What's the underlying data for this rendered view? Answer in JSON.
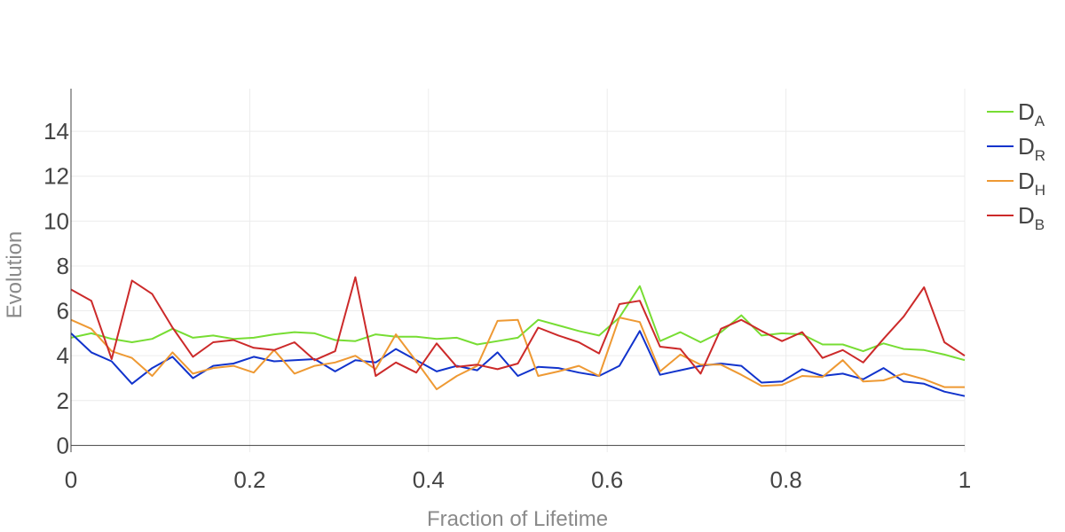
{
  "chart_data": {
    "type": "line",
    "xlabel": "Fraction of Lifetime",
    "ylabel": "Evolution",
    "xlim": [
      0,
      1
    ],
    "ylim": [
      -0.3,
      15.9
    ],
    "x_ticks": [
      0,
      0.2,
      0.4,
      0.6,
      0.8,
      1
    ],
    "x_tick_labels": [
      "0",
      "0.2",
      "0.4",
      "0.6",
      "0.8",
      "1"
    ],
    "y_ticks": [
      0,
      2,
      4,
      6,
      8,
      10,
      12,
      14
    ],
    "y_tick_labels": [
      "0",
      "2",
      "4",
      "6",
      "8",
      "10",
      "12",
      "14"
    ],
    "grid": true,
    "legend_position": "right",
    "x": [
      0,
      0.0227,
      0.0455,
      0.0682,
      0.0909,
      0.1136,
      0.1364,
      0.1591,
      0.1818,
      0.2045,
      0.2273,
      0.25,
      0.2727,
      0.2955,
      0.3182,
      0.3409,
      0.3636,
      0.3864,
      0.4091,
      0.4318,
      0.4545,
      0.4773,
      0.5,
      0.5227,
      0.5455,
      0.5682,
      0.5909,
      0.6136,
      0.6364,
      0.6591,
      0.6818,
      0.7045,
      0.7273,
      0.75,
      0.7727,
      0.7955,
      0.8182,
      0.8409,
      0.8636,
      0.8864,
      0.9091,
      0.9318,
      0.9545,
      0.9773,
      1
    ],
    "series": [
      {
        "name": "D",
        "sub": "A",
        "color": "#77dd33",
        "values": [
          4.8,
          5.0,
          4.75,
          4.6,
          4.75,
          5.2,
          4.8,
          4.9,
          4.75,
          4.8,
          4.95,
          5.05,
          5.0,
          4.7,
          4.65,
          4.95,
          4.85,
          4.85,
          4.75,
          4.8,
          4.5,
          4.65,
          4.8,
          5.6,
          5.35,
          5.1,
          4.9,
          5.7,
          7.1,
          4.65,
          5.05,
          4.6,
          5.05,
          5.8,
          4.9,
          5.0,
          4.95,
          4.5,
          4.5,
          4.2,
          4.55,
          4.3,
          4.25,
          4.05,
          3.8
        ]
      },
      {
        "name": "D",
        "sub": "R",
        "color": "#1133cc",
        "values": [
          5.0,
          4.15,
          3.75,
          2.75,
          3.45,
          3.95,
          3.0,
          3.55,
          3.65,
          3.95,
          3.75,
          3.8,
          3.85,
          3.3,
          3.8,
          3.7,
          4.3,
          3.8,
          3.3,
          3.55,
          3.35,
          4.15,
          3.1,
          3.5,
          3.45,
          3.25,
          3.1,
          3.55,
          5.1,
          3.15,
          3.35,
          3.55,
          3.65,
          3.55,
          2.8,
          2.85,
          3.4,
          3.1,
          3.2,
          2.95,
          3.45,
          2.85,
          2.75,
          2.4,
          2.2
        ]
      },
      {
        "name": "D",
        "sub": "H",
        "color": "#ee9933",
        "values": [
          5.6,
          5.2,
          4.2,
          3.9,
          3.1,
          4.15,
          3.2,
          3.45,
          3.55,
          3.25,
          4.25,
          3.2,
          3.55,
          3.7,
          4.0,
          3.4,
          4.95,
          3.75,
          2.5,
          3.1,
          3.55,
          5.55,
          5.6,
          3.1,
          3.3,
          3.55,
          3.1,
          5.7,
          5.5,
          3.3,
          4.05,
          3.6,
          3.6,
          3.15,
          2.65,
          2.7,
          3.1,
          3.05,
          3.8,
          2.85,
          2.9,
          3.2,
          2.95,
          2.6,
          2.6
        ]
      },
      {
        "name": "D",
        "sub": "B",
        "color": "#cc2a2a",
        "values": [
          6.95,
          6.45,
          3.85,
          7.35,
          6.75,
          5.25,
          3.95,
          4.6,
          4.7,
          4.35,
          4.25,
          4.6,
          3.8,
          4.2,
          7.5,
          3.1,
          3.7,
          3.25,
          4.55,
          3.5,
          3.6,
          3.4,
          3.65,
          5.25,
          4.9,
          4.6,
          4.1,
          6.3,
          6.45,
          4.4,
          4.3,
          3.2,
          5.2,
          5.6,
          5.1,
          4.65,
          5.05,
          3.9,
          4.25,
          3.7,
          4.75,
          5.75,
          7.05,
          4.6,
          4.0
        ]
      }
    ]
  }
}
